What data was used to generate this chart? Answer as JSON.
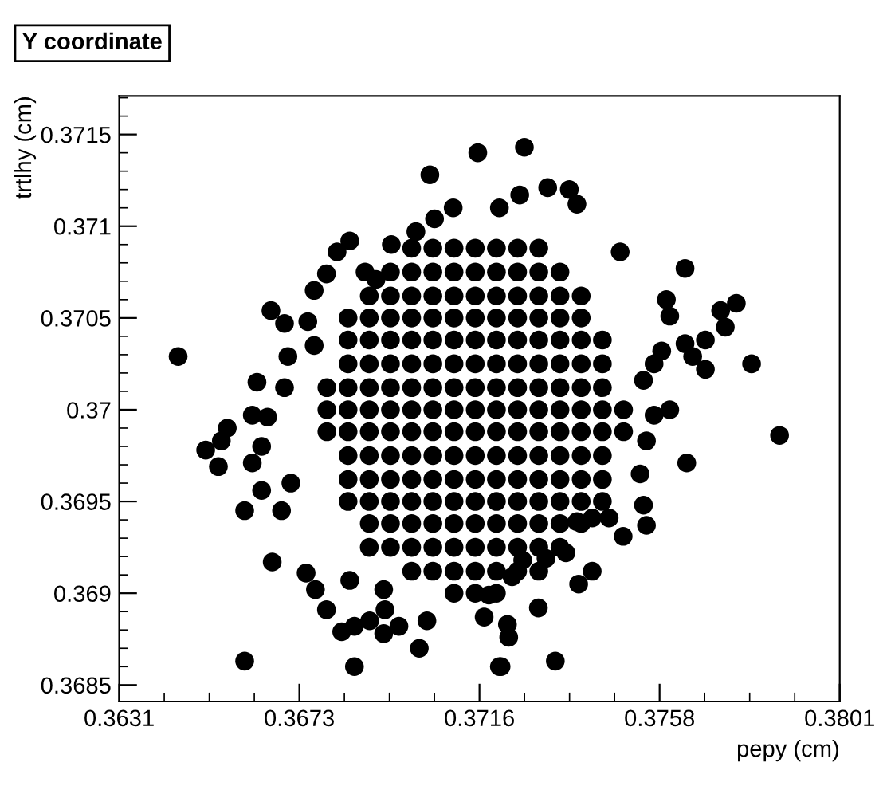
{
  "chart_data": {
    "type": "scatter",
    "title": "Y coordinate",
    "xlabel": "pepy (cm)",
    "ylabel": "trtlhy (cm)",
    "marker": "circle",
    "xlim": [
      0.3631,
      0.3801
    ],
    "ylim": [
      0.36841,
      0.37171
    ],
    "xticks": [
      0.3631,
      {
        "value": 0.36735,
        "label": "0.3673"
      },
      0.3716,
      {
        "value": 0.37585,
        "label": "0.3758"
      },
      0.3801
    ],
    "yticks": [
      0.3685,
      0.369,
      0.3695,
      0.37,
      0.3705,
      0.371,
      0.3715
    ],
    "series": [
      {
        "color": "#000000",
        "x": [
          0.371,
          0.3715,
          0.372,
          0.37,
          0.3705,
          0.371,
          0.3715,
          0.372,
          0.3725,
          0.373,
          0.369,
          0.3695,
          0.37,
          0.3705,
          0.371,
          0.3715,
          0.372,
          0.3725,
          0.373,
          0.3735,
          0.369,
          0.3695,
          0.37,
          0.3705,
          0.371,
          0.3715,
          0.372,
          0.3725,
          0.373,
          0.3735,
          0.374,
          0.3685,
          0.369,
          0.3695,
          0.37,
          0.3705,
          0.371,
          0.3715,
          0.372,
          0.3725,
          0.373,
          0.3735,
          0.374,
          0.3745,
          0.3685,
          0.369,
          0.3695,
          0.37,
          0.3705,
          0.371,
          0.3715,
          0.372,
          0.3725,
          0.373,
          0.3735,
          0.374,
          0.3745,
          0.3685,
          0.369,
          0.3695,
          0.37,
          0.3705,
          0.371,
          0.3715,
          0.372,
          0.3725,
          0.373,
          0.3735,
          0.374,
          0.3745,
          0.368,
          0.3685,
          0.369,
          0.3695,
          0.37,
          0.3705,
          0.371,
          0.3715,
          0.372,
          0.3725,
          0.373,
          0.3735,
          0.374,
          0.3745,
          0.375,
          0.368,
          0.3685,
          0.369,
          0.3695,
          0.37,
          0.3705,
          0.371,
          0.3715,
          0.372,
          0.3725,
          0.373,
          0.3735,
          0.374,
          0.3745,
          0.375,
          0.368,
          0.3685,
          0.369,
          0.3695,
          0.37,
          0.3705,
          0.371,
          0.3715,
          0.372,
          0.3725,
          0.373,
          0.3735,
          0.374,
          0.3745,
          0.3685,
          0.369,
          0.3695,
          0.37,
          0.3705,
          0.371,
          0.3715,
          0.372,
          0.3725,
          0.373,
          0.3735,
          0.374,
          0.3745,
          0.3685,
          0.369,
          0.3695,
          0.37,
          0.3705,
          0.371,
          0.3715,
          0.372,
          0.3725,
          0.373,
          0.3735,
          0.374,
          0.3745,
          0.3685,
          0.369,
          0.3695,
          0.37,
          0.3705,
          0.371,
          0.3715,
          0.372,
          0.3725,
          0.373,
          0.3735,
          0.374,
          0.369,
          0.3695,
          0.37,
          0.3705,
          0.371,
          0.3715,
          0.372,
          0.3725,
          0.373,
          0.3735,
          0.374,
          0.3695,
          0.37,
          0.3705,
          0.371,
          0.3715,
          0.372,
          0.3725,
          0.373,
          0.3735,
          0.37,
          0.3705,
          0.371,
          0.3715,
          0.372,
          0.3725,
          0.373,
          0.36449,
          0.36514,
          0.36544,
          0.36565,
          0.36551,
          0.36606,
          0.36606,
          0.36671,
          0.36668,
          0.367,
          0.36635,
          0.36624,
          0.3666,
          0.36646,
          0.36624,
          0.36646,
          0.36715,
          0.36693,
          0.36708,
          0.3677,
          0.367,
          0.36755,
          0.3677,
          0.36799,
          0.36824,
          0.36854,
          0.36751,
          0.36773,
          0.36799,
          0.36854,
          0.36835,
          0.36865,
          0.36865,
          0.36934,
          0.36901,
          0.36937,
          0.36934,
          0.3697,
          0.37018,
          0.37036,
          0.36952,
          0.36916,
          0.3689,
          0.3701,
          0.37054,
          0.37098,
          0.37043,
          0.37156,
          0.37182,
          0.37171,
          0.37207,
          0.37266,
          0.37321,
          0.37372,
          0.3739,
          0.37255,
          0.37207,
          0.37492,
          0.37645,
          0.37601,
          0.37609,
          0.37766,
          0.37729,
          0.3774,
          0.37693,
          0.37645,
          0.37663,
          0.37693,
          0.37802,
          0.3759,
          0.37572,
          0.37547,
          0.37609,
          0.37572,
          0.37868,
          0.37649,
          0.37554,
          0.37539,
          0.37547,
          0.37554,
          0.37499,
          0.37466,
          0.37426,
          0.3739,
          0.37426,
          0.37394,
          0.37226,
          0.37229,
          0.37211,
          0.37339,
          0.37299,
          0.37317,
          0.37364,
          0.37262,
          0.37237
        ],
        "values": [
          0.369,
          0.369,
          0.369,
          0.36912,
          0.36912,
          0.36912,
          0.36912,
          0.36912,
          0.36912,
          0.36912,
          0.36925,
          0.36925,
          0.36925,
          0.36925,
          0.36925,
          0.36925,
          0.36925,
          0.36925,
          0.36925,
          0.36925,
          0.36938,
          0.36938,
          0.36938,
          0.36938,
          0.36938,
          0.36938,
          0.36938,
          0.36938,
          0.36938,
          0.36938,
          0.36938,
          0.3695,
          0.3695,
          0.3695,
          0.3695,
          0.3695,
          0.3695,
          0.3695,
          0.3695,
          0.3695,
          0.3695,
          0.3695,
          0.3695,
          0.3695,
          0.36962,
          0.36962,
          0.36962,
          0.36962,
          0.36962,
          0.36962,
          0.36962,
          0.36962,
          0.36962,
          0.36962,
          0.36962,
          0.36962,
          0.36962,
          0.36975,
          0.36975,
          0.36975,
          0.36975,
          0.36975,
          0.36975,
          0.36975,
          0.36975,
          0.36975,
          0.36975,
          0.36975,
          0.36975,
          0.36975,
          0.36988,
          0.36988,
          0.36988,
          0.36988,
          0.36988,
          0.36988,
          0.36988,
          0.36988,
          0.36988,
          0.36988,
          0.36988,
          0.36988,
          0.36988,
          0.36988,
          0.36988,
          0.37,
          0.37,
          0.37,
          0.37,
          0.37,
          0.37,
          0.37,
          0.37,
          0.37,
          0.37,
          0.37,
          0.37,
          0.37,
          0.37,
          0.37,
          0.37012,
          0.37012,
          0.37012,
          0.37012,
          0.37012,
          0.37012,
          0.37012,
          0.37012,
          0.37012,
          0.37012,
          0.37012,
          0.37012,
          0.37012,
          0.37012,
          0.37025,
          0.37025,
          0.37025,
          0.37025,
          0.37025,
          0.37025,
          0.37025,
          0.37025,
          0.37025,
          0.37025,
          0.37025,
          0.37025,
          0.37025,
          0.37038,
          0.37038,
          0.37038,
          0.37038,
          0.37038,
          0.37038,
          0.37038,
          0.37038,
          0.37038,
          0.37038,
          0.37038,
          0.37038,
          0.37038,
          0.3705,
          0.3705,
          0.3705,
          0.3705,
          0.3705,
          0.3705,
          0.3705,
          0.3705,
          0.3705,
          0.3705,
          0.3705,
          0.3705,
          0.37062,
          0.37062,
          0.37062,
          0.37062,
          0.37062,
          0.37062,
          0.37062,
          0.37062,
          0.37062,
          0.37062,
          0.37062,
          0.37075,
          0.37075,
          0.37075,
          0.37075,
          0.37075,
          0.37075,
          0.37075,
          0.37075,
          0.37075,
          0.37088,
          0.37088,
          0.37088,
          0.37088,
          0.37088,
          0.37088,
          0.37088,
          0.37029,
          0.36978,
          0.36969,
          0.3699,
          0.36983,
          0.36945,
          0.36863,
          0.36917,
          0.37054,
          0.37047,
          0.37015,
          0.36997,
          0.36996,
          0.3698,
          0.36971,
          0.36956,
          0.3696,
          0.36945,
          0.37029,
          0.37035,
          0.37012,
          0.37048,
          0.37065,
          0.37074,
          0.37086,
          0.37092,
          0.36911,
          0.36902,
          0.36891,
          0.36907,
          0.36879,
          0.36882,
          0.3686,
          0.36902,
          0.36885,
          0.36891,
          0.36878,
          0.36882,
          0.3687,
          0.36885,
          0.3709,
          0.37071,
          0.37075,
          0.37097,
          0.37104,
          0.3711,
          0.37128,
          0.3714,
          0.36899,
          0.36887,
          0.3686,
          0.37143,
          0.37121,
          0.3712,
          0.37112,
          0.37117,
          0.3711,
          0.37086,
          0.37077,
          0.3706,
          0.37051,
          0.37058,
          0.37054,
          0.37045,
          0.37038,
          0.37036,
          0.37029,
          0.37022,
          0.37025,
          0.37032,
          0.37025,
          0.37016,
          0.37,
          0.36997,
          0.36986,
          0.36971,
          0.36983,
          0.36965,
          0.36948,
          0.36937,
          0.36931,
          0.36941,
          0.36941,
          0.36939,
          0.36912,
          0.36905,
          0.36883,
          0.36876,
          0.3686,
          0.36863,
          0.36892,
          0.36919,
          0.36922,
          0.36918,
          0.36909
        ]
      }
    ]
  }
}
